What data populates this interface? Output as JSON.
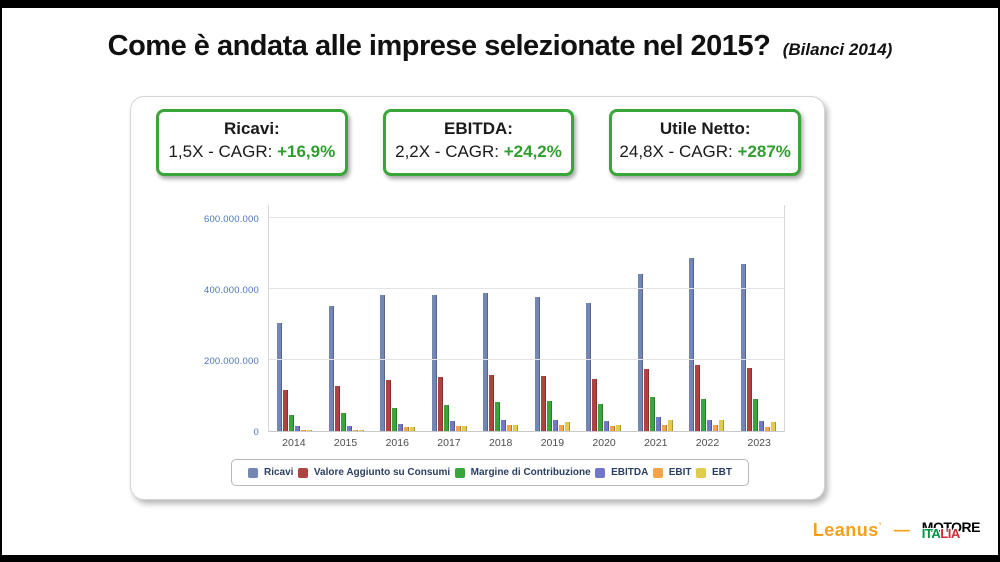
{
  "slide": {
    "title": "Come è andata alle imprese selezionate nel 2015?",
    "subtitle": "(Bilanci 2014)"
  },
  "stat_boxes": [
    {
      "label": "Ricavi:",
      "prefix": "1,5X - CAGR: ",
      "highlight": "+16,9%"
    },
    {
      "label": "EBITDA:",
      "prefix": "2,2X - CAGR: ",
      "highlight": "+24,2%"
    },
    {
      "label": "Utile Netto:",
      "prefix": "24,8X - CAGR: ",
      "highlight": "+287%"
    }
  ],
  "chart_data": {
    "type": "bar",
    "categories": [
      "2014",
      "2015",
      "2016",
      "2017",
      "2018",
      "2019",
      "2020",
      "2021",
      "2022",
      "2023"
    ],
    "series": [
      {
        "name": "Ricavi",
        "color": "#7486b4",
        "values": [
          305000000,
          352000000,
          383000000,
          382000000,
          388000000,
          377000000,
          362000000,
          442000000,
          486000000,
          470000000
        ]
      },
      {
        "name": "Valore Aggiunto su Consumi",
        "color": "#b04240",
        "values": [
          116000000,
          127000000,
          144000000,
          152000000,
          158000000,
          156000000,
          147000000,
          176000000,
          185000000,
          177000000
        ]
      },
      {
        "name": "Margine di Contribuzione",
        "color": "#3aa53c",
        "values": [
          46000000,
          52000000,
          64000000,
          72000000,
          83000000,
          84000000,
          76000000,
          95000000,
          90000000,
          89000000
        ]
      },
      {
        "name": "EBITDA",
        "color": "#7377c8",
        "values": [
          13000000,
          14000000,
          20000000,
          27000000,
          30000000,
          30000000,
          28000000,
          39000000,
          32000000,
          29000000
        ]
      },
      {
        "name": "EBIT",
        "color": "#f6a44c",
        "values": [
          4000000,
          4000000,
          11000000,
          14000000,
          17000000,
          18000000,
          13000000,
          18000000,
          17000000,
          11000000
        ]
      },
      {
        "name": "EBT",
        "color": "#e0cb4c",
        "values": [
          3000000,
          3000000,
          10000000,
          13000000,
          17000000,
          24000000,
          18000000,
          31000000,
          31000000,
          26000000
        ]
      }
    ],
    "y_ticks": [
      {
        "value": 0,
        "label": "0"
      },
      {
        "value": 200000000,
        "label": "200.000.000"
      },
      {
        "value": 400000000,
        "label": "400.000.000"
      },
      {
        "value": 600000000,
        "label": "600.000.000"
      }
    ],
    "ylim": [
      0,
      640000000
    ],
    "grid": true,
    "legend_position": "bottom"
  },
  "footer": {
    "leanus": "Leanus",
    "leanus_mark": "’",
    "dash": "—",
    "motore_top": "MOTORE",
    "motore_ita": "ITA",
    "motore_lia": "LIA"
  }
}
